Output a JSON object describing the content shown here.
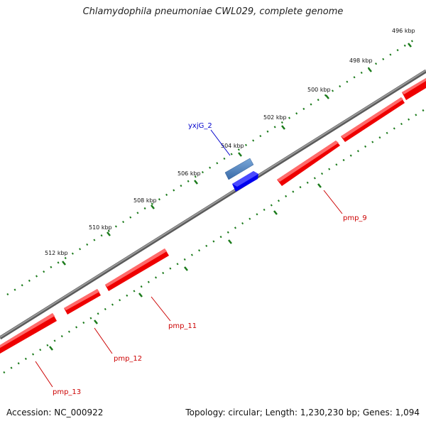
{
  "title": "Chlamydophila pneumoniae CWL029, complete genome",
  "footer": {
    "accession": "Accession: NC_000922",
    "summary": "Topology: circular; Length: 1,230,230 bp; Genes: 1,094"
  },
  "scale_labels": [
    "496 kbp",
    "498 kbp",
    "500 kbp",
    "502 kbp",
    "504 kbp",
    "506 kbp",
    "508 kbp",
    "510 kbp",
    "512 kbp"
  ],
  "genes": [
    {
      "name": "yxjG_2",
      "strand": "plus",
      "color": "#3f73b8"
    },
    {
      "name": "pmp_9",
      "strand": "minus",
      "color": "#ff0000"
    },
    {
      "name": "pmp_11",
      "strand": "minus",
      "color": "#ff0000"
    },
    {
      "name": "pmp_12",
      "strand": "minus",
      "color": "#ff0000"
    },
    {
      "name": "pmp_13",
      "strand": "minus",
      "color": "#ff0000"
    }
  ],
  "colors": {
    "backbone": "#808080",
    "tick": "#1a7a1a",
    "forward_gene": "#4a7fc0",
    "reverse_blue_gene": "#0000ee",
    "reverse_gene": "#ff0000",
    "forward_label": "#0000cc",
    "reverse_label": "#cc0000"
  }
}
